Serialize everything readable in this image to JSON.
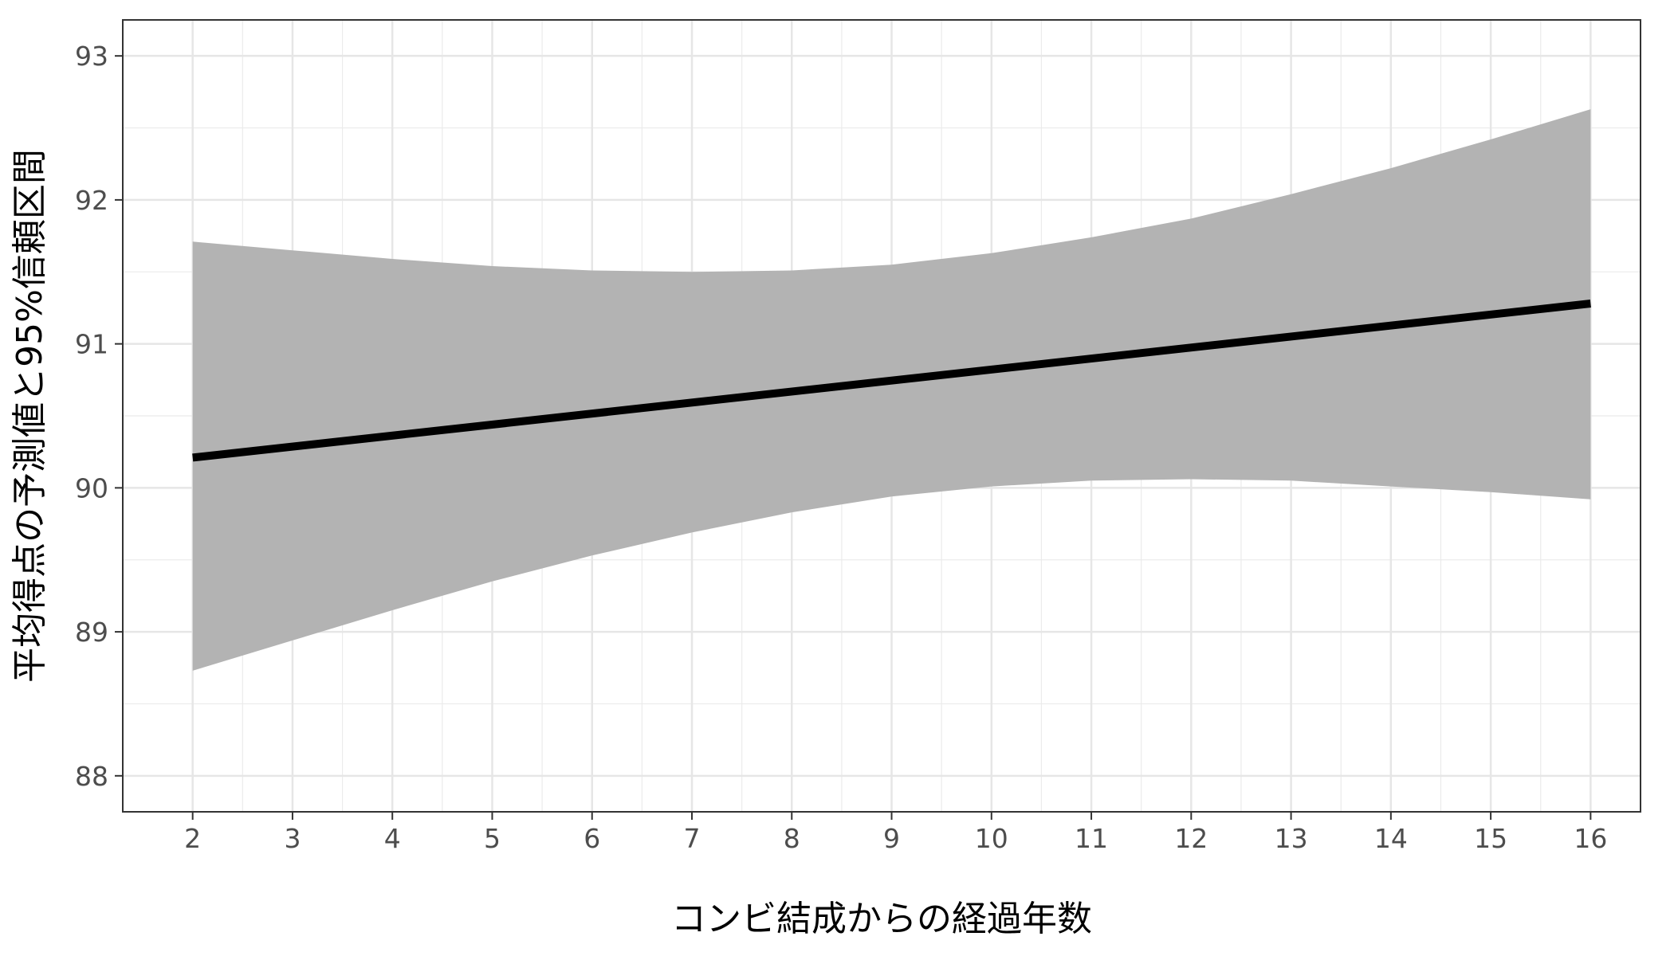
{
  "chart_data": {
    "type": "line",
    "title": "",
    "xlabel": "コンビ結成からの経過年数",
    "ylabel": "平均得点の予測値と95%信頼区間",
    "xlim": [
      1.3,
      16.5
    ],
    "ylim": [
      87.75,
      93.25
    ],
    "x_ticks": [
      2,
      3,
      4,
      5,
      6,
      7,
      8,
      9,
      10,
      11,
      12,
      13,
      14,
      15,
      16
    ],
    "y_ticks": [
      88,
      89,
      90,
      91,
      92,
      93
    ],
    "grid": true,
    "legend": "none",
    "series": [
      {
        "x": [
          2,
          16
        ],
        "y": [
          90.21,
          91.28
        ],
        "color": "#000000"
      }
    ],
    "ribbon": {
      "x": [
        2,
        3,
        4,
        5,
        6,
        7,
        8,
        9,
        10,
        11,
        12,
        13,
        14,
        15,
        16
      ],
      "upper": [
        91.71,
        91.65,
        91.59,
        91.54,
        91.51,
        91.5,
        91.51,
        91.55,
        91.63,
        91.74,
        91.87,
        92.04,
        92.22,
        92.42,
        92.63
      ],
      "lower": [
        88.73,
        88.94,
        89.15,
        89.35,
        89.53,
        89.69,
        89.83,
        89.94,
        90.01,
        90.05,
        90.06,
        90.05,
        90.01,
        89.97,
        89.92
      ],
      "color": "#b3b3b3"
    }
  }
}
